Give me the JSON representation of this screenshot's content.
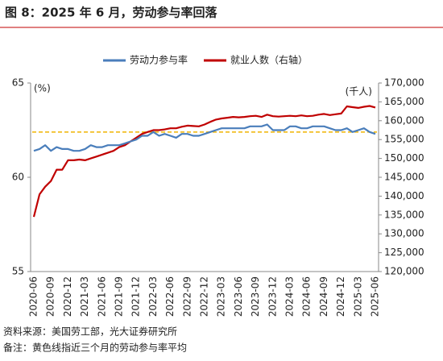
{
  "chart_data": {
    "type": "line",
    "title": "图 8：2025 年 6 月，劳动参与率回落",
    "y_label": "(%)",
    "y2_label": "(千人)",
    "categories": [
      "2020-06",
      null,
      null,
      "2020-09",
      null,
      null,
      "2020-12",
      null,
      null,
      "2021-03",
      null,
      null,
      "2021-06",
      null,
      null,
      "2021-09",
      null,
      null,
      "2021-12",
      null,
      null,
      "2022-03",
      null,
      null,
      "2022-06",
      null,
      null,
      "2022-09",
      null,
      null,
      "2022-12",
      null,
      null,
      "2023-03",
      null,
      null,
      "2023-06",
      null,
      null,
      "2023-09",
      null,
      null,
      "2023-12",
      null,
      null,
      "2024-03",
      null,
      null,
      "2024-06",
      null,
      null,
      "2024-09",
      null,
      null,
      "2024-12",
      null,
      null,
      "2025-03",
      null,
      null,
      "2025-06"
    ],
    "series": [
      {
        "name": "劳动力参与率",
        "color": "#4a7ebb",
        "axis": "y",
        "values": [
          61.4,
          61.5,
          61.7,
          61.4,
          61.6,
          61.5,
          61.5,
          61.4,
          61.4,
          61.5,
          61.7,
          61.6,
          61.6,
          61.7,
          61.7,
          61.7,
          61.8,
          61.9,
          62.0,
          62.2,
          62.2,
          62.4,
          62.2,
          62.3,
          62.2,
          62.1,
          62.3,
          62.3,
          62.2,
          62.2,
          62.3,
          62.4,
          62.5,
          62.6,
          62.6,
          62.6,
          62.6,
          62.6,
          62.7,
          62.7,
          62.7,
          62.8,
          62.5,
          62.5,
          62.5,
          62.7,
          62.7,
          62.6,
          62.6,
          62.7,
          62.7,
          62.7,
          62.6,
          62.5,
          62.5,
          62.6,
          62.4,
          62.5,
          62.6,
          62.4,
          62.3
        ]
      },
      {
        "name": "就业人数（右轴）",
        "color": "#c00000",
        "axis": "y2",
        "values": [
          134500,
          140500,
          142500,
          144000,
          147000,
          147000,
          149500,
          149500,
          149700,
          149500,
          150000,
          150500,
          151000,
          151500,
          152000,
          153000,
          153500,
          154500,
          155500,
          156500,
          157000,
          157500,
          157500,
          157700,
          158000,
          158000,
          158400,
          158700,
          158600,
          158500,
          159000,
          159700,
          160300,
          160600,
          160800,
          161000,
          160900,
          161000,
          161200,
          161300,
          161000,
          161600,
          161200,
          161100,
          161200,
          161300,
          161200,
          161400,
          161200,
          161300,
          161600,
          161800,
          161500,
          161700,
          161900,
          163800,
          163600,
          163400,
          163700,
          163900,
          163500
        ]
      }
    ],
    "reference_line": {
      "value": 62.4,
      "color": "#f0b400"
    },
    "ylim": [
      55,
      65
    ],
    "yticks": [
      55,
      60,
      65
    ],
    "y2lim": [
      120000,
      170000
    ],
    "y2ticks": [
      {
        "value": 120000,
        "label": "120,000"
      },
      {
        "value": 125000,
        "label": "125,000"
      },
      {
        "value": 130000,
        "label": "130,000"
      },
      {
        "value": 135000,
        "label": "135,000"
      },
      {
        "value": 140000,
        "label": "140,000"
      },
      {
        "value": 145000,
        "label": "145,000"
      },
      {
        "value": 150000,
        "label": "150,000"
      },
      {
        "value": 155000,
        "label": "155,000"
      },
      {
        "value": 160000,
        "label": "160,000"
      },
      {
        "value": 165000,
        "label": "165,000"
      },
      {
        "value": 170000,
        "label": "170,000"
      }
    ],
    "legend": "top",
    "notes": [
      "资料来源：美国劳工部，光大证券研究所",
      "备注：黄色线指近三个月的劳动参与率平均"
    ]
  }
}
